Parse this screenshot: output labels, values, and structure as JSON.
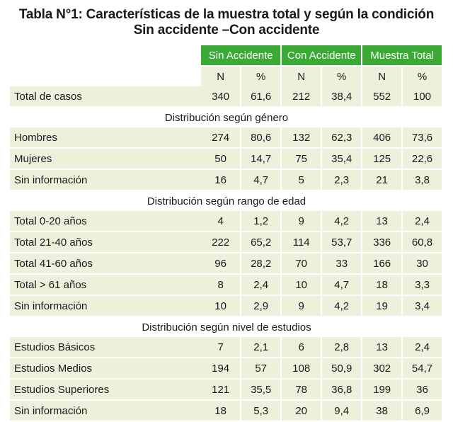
{
  "title_line1": "Tabla N°1: Características de la muestra total y según la condición",
  "title_line2": "Sin accidente –Con accidente",
  "groups": [
    "Sin Accidente",
    "Con Accidente",
    "Muestra Total"
  ],
  "subheaders": [
    "N",
    "%",
    "N",
    "%",
    "N",
    "%"
  ],
  "total": {
    "label": "Total de casos",
    "values": [
      "340",
      "61,6",
      "212",
      "38,4",
      "552",
      "100"
    ]
  },
  "sections": [
    {
      "title": "Distribución según género",
      "rows": [
        {
          "label": "Hombres",
          "values": [
            "274",
            "80,6",
            "132",
            "62,3",
            "406",
            "73,6"
          ]
        },
        {
          "label": "Mujeres",
          "values": [
            "50",
            "14,7",
            "75",
            "35,4",
            "125",
            "22,6"
          ]
        },
        {
          "label": "Sin información",
          "values": [
            "16",
            "4,7",
            "5",
            "2,3",
            "21",
            "3,8"
          ]
        }
      ]
    },
    {
      "title": "Distribución según rango de edad",
      "rows": [
        {
          "label": "Total 0-20 años",
          "values": [
            "4",
            "1,2",
            "9",
            "4,2",
            "13",
            "2,4"
          ]
        },
        {
          "label": "Total 21-40 años",
          "values": [
            "222",
            "65,2",
            "114",
            "53,7",
            "336",
            "60,8"
          ]
        },
        {
          "label": "Total 41-60 años",
          "values": [
            "96",
            "28,2",
            "70",
            "33",
            "166",
            "30"
          ]
        },
        {
          "label": "Total > 61 años",
          "values": [
            "8",
            "2,4",
            "10",
            "4,7",
            "18",
            "3,3"
          ]
        },
        {
          "label": "Sin información",
          "values": [
            "10",
            "2,9",
            "9",
            "4,2",
            "19",
            "3,4"
          ]
        }
      ]
    },
    {
      "title": "Distribución según nivel de estudios",
      "rows": [
        {
          "label": "Estudios Básicos",
          "values": [
            "7",
            "2,1",
            "6",
            "2,8",
            "13",
            "2,4"
          ]
        },
        {
          "label": "Estudios Medios",
          "values": [
            "194",
            "57",
            "108",
            "50,9",
            "302",
            "54,7"
          ]
        },
        {
          "label": "Estudios Superiores",
          "values": [
            "121",
            "35,5",
            "78",
            "36,8",
            "199",
            "36"
          ]
        },
        {
          "label": "Sin información",
          "values": [
            "18",
            "5,3",
            "20",
            "9,4",
            "38",
            "6,9"
          ]
        }
      ]
    }
  ]
}
